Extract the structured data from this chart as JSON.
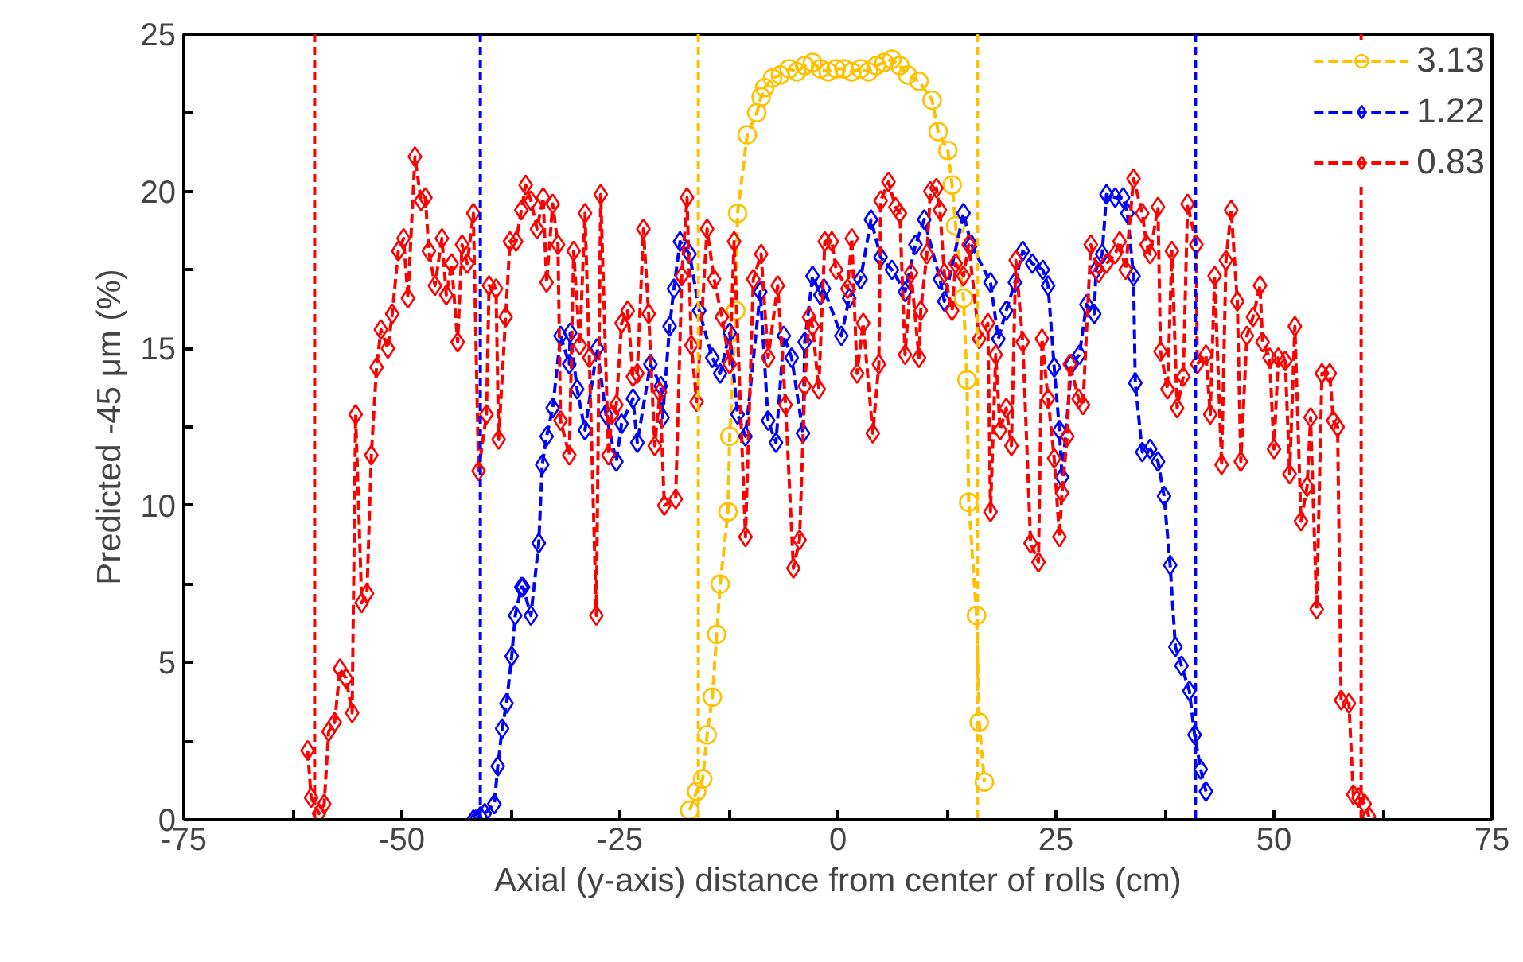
{
  "chart_data": {
    "type": "line",
    "xlabel": "Axial (y-axis) distance from center of rolls (cm)",
    "ylabel": "Predicted -45 μm (%)",
    "xlim": [
      -75,
      75
    ],
    "ylim": [
      0,
      25
    ],
    "xticks": [
      -75,
      {
        "value": -62.5,
        "label": null
      },
      -50,
      {
        "value": -37.5,
        "label": null
      },
      -25,
      {
        "value": -12.5,
        "label": null
      },
      0,
      {
        "value": 12.5,
        "label": null
      },
      25,
      {
        "value": 37.5,
        "label": null
      },
      50,
      {
        "value": 62.5,
        "label": null
      },
      75
    ],
    "yticks": [
      0,
      {
        "value": 2.5,
        "label": null
      },
      5,
      {
        "value": 7.5,
        "label": null
      },
      10,
      {
        "value": 12.5,
        "label": null
      },
      15,
      {
        "value": 17.5,
        "label": null
      },
      20,
      {
        "value": 22.5,
        "label": null
      },
      25
    ],
    "legend": "top right",
    "line_style": "dashed",
    "series": [
      {
        "name": "3.13",
        "color": "#ffc000",
        "marker": "circle",
        "x": [
          -17,
          -16.2,
          -15.5,
          -15,
          -14.4,
          -13.9,
          -13.5,
          -12.6,
          -12.4,
          -11.7,
          -11.5,
          -10.4,
          -9.3,
          -8.8,
          -8.4,
          -7.5,
          -6.6,
          -5.6,
          -4.7,
          -3.8,
          -2.9,
          -2,
          -1.1,
          -0.2,
          0.7,
          1.6,
          2.6,
          3.5,
          4.4,
          5.3,
          6.2,
          7.1,
          8,
          9.3,
          10.8,
          11.5,
          12.6,
          13.1,
          13.5,
          14.4,
          14.8,
          15,
          15.9,
          16.2,
          16.8
        ],
        "values": [
          0.3,
          0.9,
          1.3,
          2.7,
          3.9,
          5.9,
          7.5,
          9.8,
          12.2,
          16.2,
          19.3,
          21.8,
          22.5,
          23,
          23.3,
          23.6,
          23.7,
          23.9,
          23.8,
          24,
          24.1,
          23.9,
          23.8,
          23.9,
          23.9,
          23.8,
          23.9,
          23.8,
          24,
          24.1,
          24.2,
          24,
          23.7,
          23.5,
          22.9,
          21.9,
          21.3,
          20.2,
          18.9,
          16.6,
          14,
          10.1,
          6.5,
          3.1,
          1.2
        ]
      },
      {
        "name": "1.22",
        "color": "#0000ff",
        "marker": "diamond",
        "x": [
          -41.8,
          -41.5,
          -41,
          -40.5,
          -39.4,
          -39,
          -38.5,
          -38,
          -37.4,
          -37,
          -36.3,
          -36.1,
          -35.2,
          -34.3,
          -33.9,
          -33.4,
          -32.7,
          -31.8,
          -30.8,
          -30.7,
          -29.9,
          -29,
          -27.6,
          -26.6,
          -25.4,
          -24.8,
          -23.5,
          -23,
          -21.5,
          -20.3,
          -20.1,
          -19.3,
          -18.8,
          -18.1,
          -17,
          -15.9,
          -14.4,
          -13.5,
          -12.4,
          -11.5,
          -10.6,
          -8.9,
          -8,
          -7.1,
          -6.2,
          -5.3,
          -4,
          -3.8,
          -2.9,
          -2,
          -1.6,
          0.4,
          1.3,
          2.6,
          3.8,
          4.9,
          6.2,
          7.7,
          8.9,
          9.9,
          11.7,
          12.2,
          14.4,
          15.3,
          17.5,
          18.4,
          19.3,
          20.3,
          21.2,
          22.3,
          23.5,
          24.1,
          24.8,
          25.4,
          25.7,
          26.8,
          27.7,
          28.5,
          29.4,
          29.6,
          30.3,
          30.8,
          31.8,
          32.7,
          33.2,
          33.9,
          34.1,
          34.9,
          35.8,
          36.7,
          37.4,
          38.1,
          38.7,
          39.4,
          40.3,
          40.9,
          41.6,
          42.2
        ],
        "values": [
          0,
          0,
          0.1,
          0.2,
          0.5,
          1.7,
          2.9,
          3.7,
          5.2,
          6.5,
          7.4,
          7.4,
          6.5,
          8.8,
          11.3,
          12.2,
          13.1,
          15.4,
          14.5,
          15.5,
          13.7,
          12.4,
          15,
          12.9,
          11.4,
          12.6,
          13.4,
          12,
          14.5,
          13.8,
          12.8,
          15.7,
          16.9,
          18.4,
          18,
          16.2,
          14.7,
          14.2,
          15.5,
          12.9,
          12.2,
          16.8,
          12.7,
          12,
          15.4,
          14.7,
          12.3,
          15.2,
          17.3,
          16.7,
          16.9,
          15.4,
          16.6,
          17.2,
          19.1,
          17.9,
          17.5,
          16.8,
          18.3,
          19.1,
          17.2,
          16.5,
          19.3,
          18.3,
          17.1,
          15.3,
          16.2,
          17.1,
          18.1,
          17.7,
          17.5,
          17,
          14.4,
          12.4,
          10.9,
          14.5,
          14.8,
          16.4,
          16.1,
          17.5,
          18,
          19.9,
          19.8,
          19.8,
          19.3,
          17.3,
          13.9,
          11.7,
          11.8,
          11.4,
          10.3,
          8.1,
          5.5,
          4.9,
          4.1,
          2.7,
          1.6,
          0.9
        ]
      },
      {
        "name": "0.83",
        "color": "#ff0000",
        "marker": "diamond",
        "x": [
          -60.8,
          -60.4,
          -59.5,
          -58.9,
          -58.4,
          -57.7,
          -57.1,
          -56.4,
          -55.7,
          -55.3,
          -54.6,
          -54,
          -53.5,
          -52.9,
          -52.4,
          -51.6,
          -51.1,
          -50.4,
          -49.8,
          -49.3,
          -48.5,
          -47.8,
          -47.3,
          -46.9,
          -46.2,
          -45.4,
          -44.9,
          -44.3,
          -43.6,
          -43.1,
          -42.5,
          -41.8,
          -41.2,
          -40.3,
          -40,
          -39.2,
          -38.9,
          -38.1,
          -37.6,
          -36.9,
          -36.3,
          -35.8,
          -35.2,
          -34.5,
          -33.8,
          -33.4,
          -32.7,
          -32.1,
          -31.8,
          -30.8,
          -30.3,
          -29.6,
          -29,
          -28.5,
          -27.7,
          -27.2,
          -26.3,
          -25.9,
          -25.4,
          -24.8,
          -24.1,
          -23.5,
          -23,
          -22.3,
          -21.7,
          -21,
          -20.4,
          -19.9,
          -18.6,
          -17.9,
          -17.3,
          -16.8,
          -16.2,
          -15,
          -14.2,
          -13.3,
          -12.4,
          -11.9,
          -10.6,
          -9.7,
          -8.8,
          -8,
          -6.9,
          -6,
          -5.1,
          -4.4,
          -3.8,
          -3.3,
          -2.9,
          -2.2,
          -1.5,
          -0.7,
          -0.2,
          1.1,
          1.6,
          2.2,
          2.9,
          4,
          4.7,
          4.9,
          5.8,
          6.6,
          7.1,
          7.7,
          8.4,
          9.3,
          9.5,
          10.2,
          10.6,
          11.3,
          11.7,
          12.2,
          13.1,
          13.5,
          14.4,
          15,
          16.2,
          17.2,
          17.5,
          18.1,
          18.6,
          19.3,
          19.9,
          20.4,
          21.2,
          22.1,
          23,
          23.4,
          24.1,
          24.8,
          25.4,
          25.7,
          26.3,
          26.6,
          27.6,
          28.1,
          29,
          29.9,
          30.8,
          31.8,
          32.3,
          33,
          33.9,
          34.9,
          35.4,
          35.8,
          36.7,
          37,
          37.8,
          38.3,
          38.9,
          39.6,
          40.1,
          41.1,
          41.2,
          42.2,
          42.7,
          43.2,
          44,
          44.5,
          45.1,
          45.8,
          46.2,
          46.9,
          47.6,
          48.4,
          48.7,
          49.5,
          50,
          50.5,
          51.3,
          51.8,
          52.4,
          53.1,
          53.8,
          54.2,
          54.9,
          55.5,
          56.4,
          56.8,
          57.3,
          57.7,
          58.6,
          59.1,
          59.7,
          60.4,
          60.9
        ],
        "values": [
          2.2,
          0.7,
          0.2,
          0.5,
          2.8,
          3.1,
          4.8,
          4.5,
          3.4,
          12.9,
          6.9,
          7.2,
          11.6,
          14.4,
          15.6,
          15,
          16.1,
          18.1,
          18.5,
          16.6,
          21.1,
          19.7,
          19.8,
          18.1,
          17,
          18.5,
          16.7,
          17.7,
          15.2,
          18.3,
          17.7,
          19.3,
          11.1,
          12.9,
          17,
          16.9,
          12.1,
          16,
          18.4,
          18.4,
          19.4,
          20.2,
          19.7,
          18.8,
          19.8,
          17.1,
          19.6,
          18.3,
          12.7,
          11.6,
          18.1,
          15.1,
          19.3,
          14.7,
          6.5,
          19.9,
          11.6,
          12.9,
          13.2,
          15.8,
          16.2,
          14.1,
          14.2,
          18.8,
          16.1,
          11.9,
          13.6,
          10,
          10.2,
          17.3,
          19.8,
          15.1,
          13.3,
          18.8,
          17.2,
          16,
          14.5,
          18.4,
          9,
          17.2,
          18,
          14.7,
          17,
          13.2,
          8,
          8.9,
          13.8,
          16,
          15.7,
          13.7,
          18.4,
          18.4,
          17.5,
          16.9,
          18.5,
          14.2,
          15.8,
          12.3,
          14.5,
          19.7,
          20.3,
          19.5,
          19.3,
          14.8,
          17.4,
          14.7,
          16.2,
          18,
          20,
          20.1,
          19.4,
          17.4,
          16.2,
          17.7,
          17.3,
          18.3,
          15.3,
          15.8,
          9.8,
          14.8,
          12.4,
          13.1,
          11.9,
          17.8,
          15.2,
          8.8,
          8.2,
          15.3,
          13.4,
          11.5,
          9,
          10.4,
          12.2,
          14.5,
          13.4,
          13.2,
          18.3,
          17.4,
          17.7,
          18,
          18.4,
          17.5,
          20.4,
          19.3,
          18.3,
          18,
          19.5,
          14.9,
          13.7,
          18.1,
          13.1,
          14.1,
          19.6,
          18.3,
          14.5,
          14.8,
          12.9,
          17.3,
          11.3,
          17.8,
          19.4,
          16.5,
          11.4,
          15.4,
          16,
          17,
          15.2,
          14.7,
          11.8,
          14.7,
          14.6,
          11,
          15.7,
          9.5,
          10.6,
          12.8,
          6.7,
          14.2,
          14.2,
          12.7,
          12.5,
          3.8,
          3.7,
          0.8,
          0.7,
          0.5,
          0.1
        ]
      }
    ],
    "ref_lines": [
      {
        "axis": "x",
        "value": -60,
        "label": null,
        "color": "#ff0000",
        "line_style": "dashed"
      },
      {
        "axis": "x",
        "value": 60,
        "label": null,
        "color": "#ff0000",
        "line_style": "dashed"
      },
      {
        "axis": "x",
        "value": -41,
        "label": null,
        "color": "#0000ff",
        "line_style": "dashed"
      },
      {
        "axis": "x",
        "value": 41,
        "label": null,
        "color": "#0000ff",
        "line_style": "dashed"
      },
      {
        "axis": "x",
        "value": -16,
        "label": null,
        "color": "#ffc000",
        "line_style": "dashed"
      },
      {
        "axis": "x",
        "value": 16,
        "label": null,
        "color": "#ffc000",
        "line_style": "dashed"
      }
    ]
  }
}
